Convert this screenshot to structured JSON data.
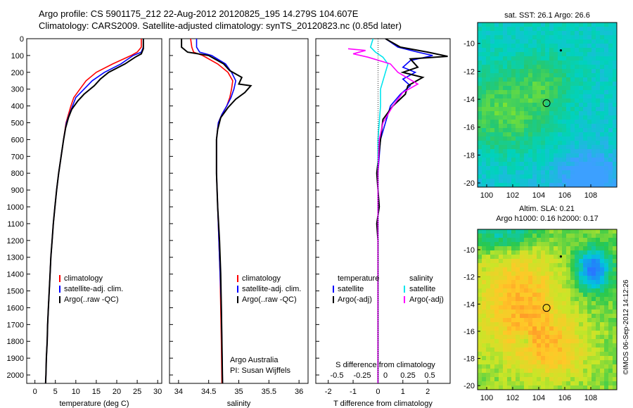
{
  "header": {
    "title": "Argo profile: CS 5901175_212 22-Aug-2012 20120825_195 14.279S 104.607E",
    "subtitle": "Climatology: CARS2009. Satellite-adjusted climatology: synTS_20120823.nc (0.85d later)"
  },
  "colors": {
    "climatology": "#ff0000",
    "satellite": "#0000ff",
    "argo": "#000000",
    "sal_satellite": "#00e5ee",
    "sal_argo": "#ff00ff"
  },
  "credit": "©IMOS 06-Sep-2012 14:12:26",
  "chart_data": [
    {
      "type": "line",
      "xlabel": "temperature (deg C)",
      "x_ticks": [
        0,
        5,
        10,
        15,
        20,
        25,
        30
      ],
      "xlim": [
        -2,
        31
      ],
      "y_ticks": [
        0,
        100,
        200,
        300,
        400,
        500,
        600,
        700,
        800,
        900,
        1000,
        1100,
        1200,
        1300,
        1400,
        1500,
        1600,
        1700,
        1800,
        1900,
        2000
      ],
      "ylim": [
        2050,
        0
      ],
      "legend": [
        "climatology",
        "satellite-adj. clim.",
        "Argo(..raw -QC)"
      ],
      "series": [
        {
          "name": "climatology",
          "color": "red",
          "points": [
            [
              26,
              0
            ],
            [
              26,
              50
            ],
            [
              25,
              80
            ],
            [
              23.5,
              100
            ],
            [
              19,
              150
            ],
            [
              15,
              200
            ],
            [
              12.5,
              250
            ],
            [
              11,
              300
            ],
            [
              9.5,
              350
            ],
            [
              8.8,
              400
            ],
            [
              8.2,
              450
            ],
            [
              7.6,
              500
            ],
            [
              7,
              600
            ],
            [
              6.4,
              700
            ],
            [
              5.8,
              800
            ],
            [
              5.3,
              900
            ],
            [
              4.9,
              1000
            ],
            [
              4.5,
              1100
            ],
            [
              4.2,
              1200
            ],
            [
              3.9,
              1300
            ],
            [
              3.7,
              1400
            ],
            [
              3.5,
              1500
            ],
            [
              3.3,
              1600
            ],
            [
              3.1,
              1700
            ],
            [
              3,
              1800
            ],
            [
              2.8,
              1900
            ],
            [
              2.7,
              2000
            ],
            [
              2.6,
              2050
            ]
          ]
        },
        {
          "name": "satellite-adj. clim.",
          "color": "blue",
          "points": [
            [
              26.5,
              0
            ],
            [
              26.5,
              50
            ],
            [
              26,
              80
            ],
            [
              24,
              100
            ],
            [
              21,
              150
            ],
            [
              17,
              200
            ],
            [
              14,
              250
            ],
            [
              12,
              300
            ],
            [
              10,
              350
            ],
            [
              9.2,
              400
            ],
            [
              8.4,
              450
            ],
            [
              7.7,
              500
            ],
            [
              7,
              600
            ],
            [
              6.4,
              700
            ],
            [
              5.8,
              800
            ],
            [
              5.3,
              900
            ],
            [
              4.9,
              1000
            ],
            [
              4.5,
              1100
            ],
            [
              4.2,
              1200
            ],
            [
              3.9,
              1300
            ],
            [
              3.7,
              1400
            ],
            [
              3.5,
              1500
            ],
            [
              3.3,
              1600
            ],
            [
              3.1,
              1700
            ],
            [
              3,
              1800
            ],
            [
              2.8,
              1900
            ],
            [
              2.7,
              2000
            ],
            [
              2.6,
              2050
            ]
          ]
        },
        {
          "name": "Argo(..raw -QC)",
          "color": "black",
          "points": [
            [
              26.5,
              0
            ],
            [
              26.5,
              60
            ],
            [
              26,
              90
            ],
            [
              24.5,
              110
            ],
            [
              22,
              150
            ],
            [
              18,
              200
            ],
            [
              16,
              240
            ],
            [
              14.5,
              280
            ],
            [
              12,
              330
            ],
            [
              10.5,
              370
            ],
            [
              9,
              420
            ],
            [
              8.2,
              470
            ],
            [
              7.5,
              530
            ],
            [
              7,
              600
            ],
            [
              6.4,
              700
            ],
            [
              5.8,
              800
            ],
            [
              5.3,
              900
            ],
            [
              4.9,
              1000
            ],
            [
              4.5,
              1100
            ],
            [
              4.2,
              1200
            ],
            [
              3.9,
              1300
            ],
            [
              3.7,
              1400
            ],
            [
              3.5,
              1500
            ],
            [
              3.3,
              1600
            ],
            [
              3.1,
              1700
            ],
            [
              3,
              1800
            ],
            [
              2.8,
              1900
            ],
            [
              2.7,
              2000
            ],
            [
              2.6,
              2050
            ]
          ]
        }
      ]
    },
    {
      "type": "line",
      "xlabel": "salinity",
      "x_ticks": [
        34,
        34.5,
        35,
        35.5,
        36
      ],
      "xlim": [
        33.85,
        36.15
      ],
      "ylim": [
        2050,
        0
      ],
      "legend": [
        "climatology",
        "satellite-adj. clim.",
        "Argo(..raw -QC)"
      ],
      "notes": [
        "Argo Australia",
        "PI: Susan Wijffels"
      ],
      "series": [
        {
          "name": "climatology",
          "color": "red",
          "points": [
            [
              34.2,
              0
            ],
            [
              34.22,
              50
            ],
            [
              34.25,
              80
            ],
            [
              34.4,
              100
            ],
            [
              34.65,
              150
            ],
            [
              34.82,
              200
            ],
            [
              34.9,
              250
            ],
            [
              34.88,
              300
            ],
            [
              34.85,
              350
            ],
            [
              34.8,
              400
            ],
            [
              34.72,
              450
            ],
            [
              34.66,
              500
            ],
            [
              34.63,
              600
            ],
            [
              34.63,
              800
            ],
            [
              34.65,
              1000
            ],
            [
              34.67,
              1200
            ],
            [
              34.69,
              1400
            ],
            [
              34.7,
              1600
            ],
            [
              34.71,
              1800
            ],
            [
              34.72,
              2050
            ]
          ]
        },
        {
          "name": "satellite-adj. clim.",
          "color": "blue",
          "points": [
            [
              34.3,
              0
            ],
            [
              34.3,
              50
            ],
            [
              34.35,
              80
            ],
            [
              34.55,
              100
            ],
            [
              34.78,
              150
            ],
            [
              34.88,
              200
            ],
            [
              34.95,
              250
            ],
            [
              34.92,
              300
            ],
            [
              34.87,
              350
            ],
            [
              34.8,
              400
            ],
            [
              34.72,
              450
            ],
            [
              34.66,
              500
            ],
            [
              34.63,
              600
            ],
            [
              34.63,
              800
            ],
            [
              34.65,
              1000
            ],
            [
              34.67,
              1200
            ],
            [
              34.69,
              1400
            ],
            [
              34.71,
              1600
            ],
            [
              34.72,
              1800
            ],
            [
              34.73,
              2050
            ]
          ]
        },
        {
          "name": "Argo(..raw -QC)",
          "color": "black",
          "points": [
            [
              34.05,
              0
            ],
            [
              34.05,
              50
            ],
            [
              34.15,
              80
            ],
            [
              34.5,
              100
            ],
            [
              34.75,
              150
            ],
            [
              34.85,
              190
            ],
            [
              35.05,
              230
            ],
            [
              35.0,
              270
            ],
            [
              35.2,
              280
            ],
            [
              35.1,
              320
            ],
            [
              34.95,
              360
            ],
            [
              34.82,
              410
            ],
            [
              34.7,
              470
            ],
            [
              34.65,
              540
            ],
            [
              34.63,
              600
            ],
            [
              34.63,
              800
            ],
            [
              34.65,
              1000
            ],
            [
              34.68,
              1200
            ],
            [
              34.7,
              1400
            ],
            [
              34.71,
              1600
            ],
            [
              34.72,
              1800
            ],
            [
              34.73,
              2050
            ]
          ]
        }
      ]
    },
    {
      "type": "line",
      "xlabel": "T difference from climatology",
      "top_label": "S difference from climatology",
      "x_ticks": [
        -2,
        -1,
        0,
        1,
        2
      ],
      "top_ticks": [
        -0.5,
        -0.25,
        0,
        0.25,
        0.5
      ],
      "top_ticks_labels": [
        "-0.5",
        "-0.25",
        "0",
        "0.25",
        "0.5"
      ],
      "xlim": [
        -2.5,
        2.9
      ],
      "ylim": [
        2050,
        0
      ],
      "legend_left_title": "temperature",
      "legend_left": [
        "satellite",
        "Argo(-adj)"
      ],
      "legend_right_title": "salinity",
      "legend_right": [
        "satellite",
        "Argo(-adj)"
      ],
      "series": [
        {
          "name": "temperature satellite",
          "color": "blue",
          "points": [
            [
              0.3,
              0
            ],
            [
              0.8,
              50
            ],
            [
              1.6,
              80
            ],
            [
              2.2,
              100
            ],
            [
              1.3,
              130
            ],
            [
              1.0,
              170
            ],
            [
              1.5,
              200
            ],
            [
              1.0,
              240
            ],
            [
              1.3,
              280
            ],
            [
              0.9,
              330
            ],
            [
              0.5,
              400
            ],
            [
              0.3,
              500
            ],
            [
              0.1,
              600
            ],
            [
              0,
              800
            ],
            [
              0,
              2050
            ]
          ]
        },
        {
          "name": "temperature Argo(-adj)",
          "color": "black",
          "points": [
            [
              0.3,
              0
            ],
            [
              0.9,
              50
            ],
            [
              2.0,
              80
            ],
            [
              2.8,
              105
            ],
            [
              1.3,
              120
            ],
            [
              1.6,
              170
            ],
            [
              1.0,
              200
            ],
            [
              1.8,
              230
            ],
            [
              1.2,
              280
            ],
            [
              1.1,
              330
            ],
            [
              0.6,
              400
            ],
            [
              0.2,
              480
            ],
            [
              0.1,
              600
            ],
            [
              -0.05,
              800
            ],
            [
              0.05,
              1000
            ],
            [
              -0.05,
              1100
            ],
            [
              0,
              1200
            ],
            [
              0,
              2050
            ]
          ]
        },
        {
          "name": "salinity satellite",
          "color": "cyan",
          "points": [
            [
              -0.2,
              0
            ],
            [
              -0.3,
              50
            ],
            [
              -0.1,
              80
            ],
            [
              0.2,
              110
            ],
            [
              0.4,
              150
            ],
            [
              0.3,
              200
            ],
            [
              0.2,
              250
            ],
            [
              0.1,
              300
            ],
            [
              0.1,
              400
            ],
            [
              0,
              600
            ],
            [
              0,
              2050
            ]
          ]
        },
        {
          "name": "salinity Argo(-adj)",
          "color": "magenta",
          "points": [
            [
              -1.2,
              60
            ],
            [
              -0.5,
              70
            ],
            [
              -1.0,
              90
            ],
            [
              -0.4,
              110
            ],
            [
              0.5,
              150
            ],
            [
              0.8,
              200
            ],
            [
              1.6,
              270
            ],
            [
              1.0,
              320
            ],
            [
              0.6,
              400
            ],
            [
              0.2,
              500
            ],
            [
              0.05,
              600
            ],
            [
              0,
              800
            ],
            [
              0,
              2050
            ]
          ]
        }
      ]
    },
    {
      "type": "heatmap",
      "title": "sat. SST: 26.1 Argo: 26.6",
      "x_ticks": [
        100,
        102,
        104,
        106,
        108
      ],
      "y_ticks": [
        -10,
        -12,
        -14,
        -16,
        -18,
        -20
      ],
      "xlim": [
        99.3,
        110
      ],
      "ylim": [
        -20.3,
        -8.5
      ],
      "markers": [
        {
          "lon": 104.6,
          "lat": -14.28,
          "kind": "circle"
        },
        {
          "lon": 105.7,
          "lat": -10.5,
          "kind": "dot"
        }
      ]
    },
    {
      "type": "heatmap",
      "title": "Altim. SLA: 0.21",
      "subtitle": "Argo h1000: 0.16 h2000: 0.17",
      "x_ticks": [
        100,
        102,
        104,
        106,
        108
      ],
      "y_ticks": [
        -10,
        -12,
        -14,
        -16,
        -18,
        -20
      ],
      "xlim": [
        99.3,
        110
      ],
      "ylim": [
        -20.3,
        -8.5
      ],
      "markers": [
        {
          "lon": 104.6,
          "lat": -14.28,
          "kind": "circle"
        },
        {
          "lon": 105.7,
          "lat": -10.5,
          "kind": "dot"
        }
      ]
    }
  ]
}
